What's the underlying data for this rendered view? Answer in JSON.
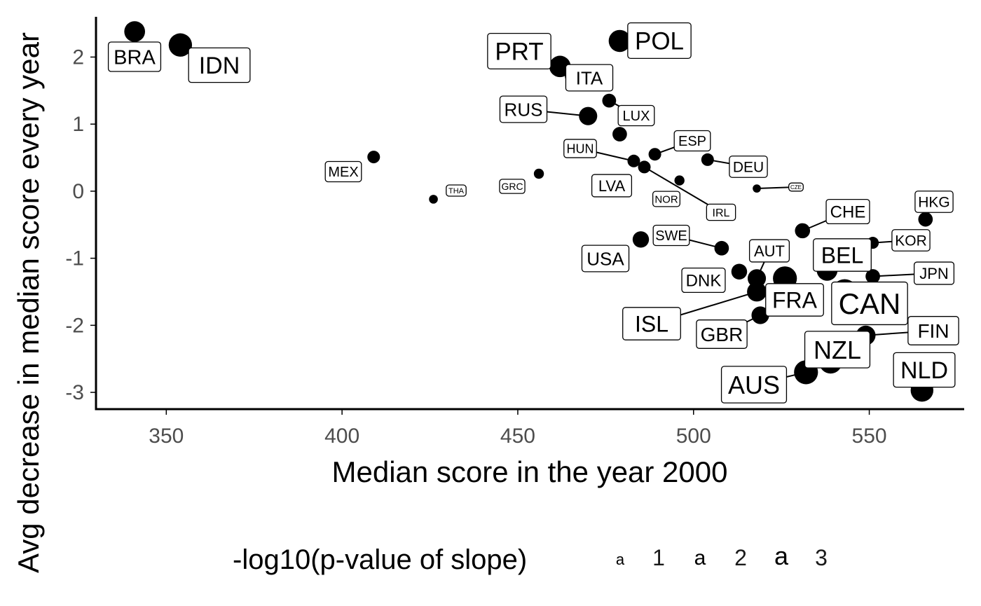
{
  "chart_data": {
    "type": "scatter",
    "title": "",
    "xlabel": "Median score in the year 2000",
    "ylabel": "Avg decrease in median score every year",
    "xlim": [
      330,
      577
    ],
    "ylim": [
      -3.25,
      2.6
    ],
    "x_ticks": [
      350,
      400,
      450,
      500,
      550
    ],
    "y_ticks": [
      -3,
      -2,
      -1,
      0,
      1,
      2
    ],
    "y_tick_labels": [
      "-3",
      "-2",
      "-1",
      "0",
      "1",
      "2"
    ],
    "grid": false,
    "size_legend": {
      "title": "-log10(p-value of slope)",
      "position": "bottom",
      "key_glyph": "a",
      "levels": [
        {
          "label": "1",
          "value": 1
        },
        {
          "label": "2",
          "value": 2
        },
        {
          "label": "3",
          "value": 3
        }
      ]
    },
    "points": [
      {
        "label": "BRA",
        "x": 341,
        "y": 2.38,
        "size": 2.3
      },
      {
        "label": "IDN",
        "x": 354,
        "y": 2.18,
        "size": 2.7
      },
      {
        "label": "MEX",
        "x": 409,
        "y": 0.51,
        "size": 1.0
      },
      {
        "label": "THA",
        "x": 426,
        "y": -0.12,
        "size": 0.4
      },
      {
        "label": "GRC",
        "x": 456,
        "y": 0.26,
        "size": 0.6
      },
      {
        "label": "PRT",
        "x": 462,
        "y": 1.86,
        "size": 2.4
      },
      {
        "label": "ITA",
        "x": 466,
        "y": 1.72,
        "size": 1.9
      },
      {
        "label": "RUS",
        "x": 470,
        "y": 1.12,
        "size": 1.9
      },
      {
        "label": "LUX",
        "x": 476,
        "y": 1.35,
        "size": 1.2
      },
      {
        "label": "POL",
        "x": 479,
        "y": 2.24,
        "size": 2.5
      },
      {
        "label": "LVA",
        "x": 479,
        "y": 0.85,
        "size": 1.3
      },
      {
        "label": "HUN",
        "x": 483,
        "y": 0.45,
        "size": 1.0
      },
      {
        "label": "USA",
        "x": 485,
        "y": -0.72,
        "size": 1.6
      },
      {
        "label": "IRL",
        "x": 486,
        "y": 0.36,
        "size": 1.0
      },
      {
        "label": "ESP",
        "x": 489,
        "y": 0.55,
        "size": 1.0
      },
      {
        "label": "NOR",
        "x": 496,
        "y": 0.16,
        "size": 0.6
      },
      {
        "label": "DEU",
        "x": 504,
        "y": 0.47,
        "size": 1.0
      },
      {
        "label": "SWE",
        "x": 508,
        "y": -0.85,
        "size": 1.3
      },
      {
        "label": "DNK",
        "x": 513,
        "y": -1.2,
        "size": 1.5
      },
      {
        "label": "CZE",
        "x": 518,
        "y": 0.04,
        "size": 0.3
      },
      {
        "label": "AUT",
        "x": 518,
        "y": -1.3,
        "size": 1.9
      },
      {
        "label": "ISL",
        "x": 518,
        "y": -1.5,
        "size": 2.1
      },
      {
        "label": "GBR",
        "x": 519,
        "y": -1.85,
        "size": 1.8
      },
      {
        "label": "FRA",
        "x": 526,
        "y": -1.3,
        "size": 2.8
      },
      {
        "label": "CHE",
        "x": 531,
        "y": -0.59,
        "size": 1.4
      },
      {
        "label": "AUS",
        "x": 532,
        "y": -2.7,
        "size": 2.8
      },
      {
        "label": "BEL",
        "x": 538,
        "y": -1.18,
        "size": 2.3
      },
      {
        "label": "NZL",
        "x": 539,
        "y": -2.55,
        "size": 2.6
      },
      {
        "label": "CAN",
        "x": 543,
        "y": -1.5,
        "size": 3.0
      },
      {
        "label": "FIN",
        "x": 549,
        "y": -2.15,
        "size": 2.1
      },
      {
        "label": "KOR",
        "x": 551,
        "y": -0.77,
        "size": 0.9
      },
      {
        "label": "JPN",
        "x": 551,
        "y": -1.27,
        "size": 1.3
      },
      {
        "label": "NLD",
        "x": 565,
        "y": -2.97,
        "size": 2.6
      },
      {
        "label": "HKG",
        "x": 566,
        "y": -0.42,
        "size": 1.3
      }
    ]
  }
}
